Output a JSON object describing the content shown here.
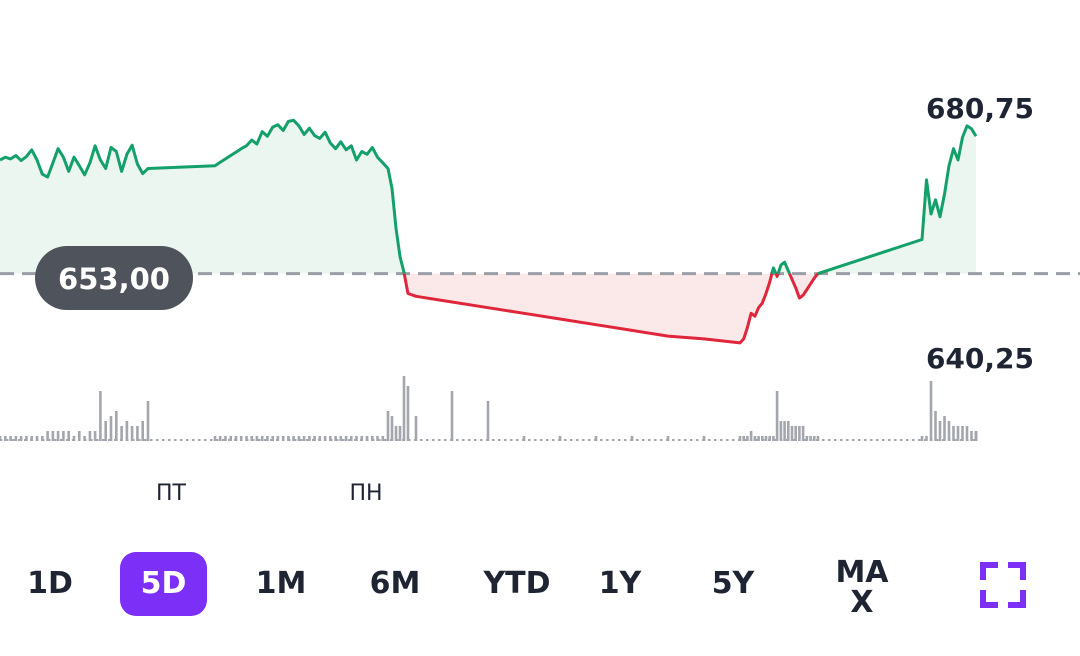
{
  "colors": {
    "up_line": "#14a06b",
    "up_fill": "#eaf6ef",
    "down_line": "#e0263a",
    "down_fill": "#fbe9ea",
    "baseline": "#9a9ea6",
    "volume": "#a3a6ad",
    "accent": "#7b2ff7",
    "label_pill": "#4f535b"
  },
  "chart_data": {
    "type": "line",
    "y_max_label": "680,75",
    "y_min_label": "640,25",
    "reference_label": "653,00",
    "reference_value": 653.0,
    "ylim": [
      640.25,
      680.75
    ],
    "x_tick_labels": [
      "ПТ",
      "ПН"
    ],
    "series": [
      {
        "values": [
          673.0,
          673.5,
          673.2,
          673.8,
          672.9,
          673.6,
          674.8,
          673.0,
          670.5,
          670.0,
          672.5,
          675.0,
          673.5,
          671.0,
          673.5,
          672.0,
          670.4,
          672.5,
          675.5,
          673.0,
          671.5,
          675.2,
          674.5,
          671.0,
          674.0,
          675.6,
          672.3,
          670.6,
          671.5,
          672.0,
          672.6,
          673.2,
          673.8,
          674.4,
          675.0,
          675.5,
          676.5,
          675.8,
          678.0,
          677.2,
          678.8,
          679.2,
          678.2,
          679.8,
          680.0,
          679.0,
          677.5,
          678.6,
          677.3,
          676.8,
          677.9,
          676.0,
          675.0,
          676.2,
          674.8,
          675.5,
          673.0,
          674.5,
          674.0,
          675.2,
          673.5,
          672.5,
          671.5,
          668.0,
          661.0,
          656.0,
          653.2,
          649.5,
          649.0,
          648.0,
          647.0,
          646.0,
          645.0,
          644.0,
          643.0,
          642.0,
          641.5,
          640.8,
          641.5,
          643.5,
          646.0,
          645.5,
          647.0,
          647.8,
          649.5,
          651.5,
          654.0,
          652.5,
          654.5,
          655.0,
          653.5,
          652.0,
          650.5,
          648.7,
          649.2,
          650.2,
          651.2,
          652.2,
          653.0,
          659.0,
          669.5,
          663.5,
          666.0,
          663.0,
          667.0,
          672.0,
          675.0,
          673.0,
          677.0,
          679.0,
          678.5,
          677.2
        ]
      }
    ],
    "volume": [
      1,
      1,
      1,
      1,
      1,
      1,
      1,
      1,
      1,
      2,
      2,
      2,
      2,
      2,
      1,
      2,
      1,
      2,
      2,
      10,
      4,
      5,
      6,
      3,
      4,
      3,
      3,
      4,
      8,
      1,
      1,
      1,
      1,
      1,
      1,
      1,
      1,
      1,
      1,
      1,
      1,
      1,
      1,
      1,
      1,
      1,
      1,
      1,
      1,
      1,
      1,
      1,
      1,
      1,
      1,
      1,
      1,
      1,
      1,
      1,
      1,
      1,
      6,
      5,
      3,
      3,
      13,
      11,
      5,
      10,
      8,
      1,
      1,
      1,
      1,
      1,
      1,
      1,
      1,
      1,
      2,
      1,
      1,
      1,
      1,
      1,
      1,
      10,
      4,
      4,
      4,
      3,
      3,
      3,
      3,
      1,
      1,
      1,
      1,
      1,
      1,
      12,
      6,
      4,
      5,
      4,
      3,
      3,
      3,
      3,
      2,
      2,
      2,
      2
    ]
  },
  "periods": [
    {
      "label": "1D",
      "active": false
    },
    {
      "label": "5D",
      "active": true
    },
    {
      "label": "1M",
      "active": false
    },
    {
      "label": "6M",
      "active": false
    },
    {
      "label": "YTD",
      "active": false
    },
    {
      "label": "1Y",
      "active": false
    },
    {
      "label": "5Y",
      "active": false
    },
    {
      "label": "MAX",
      "active": false
    }
  ],
  "icons": {
    "fullscreen": "fullscreen-icon"
  }
}
